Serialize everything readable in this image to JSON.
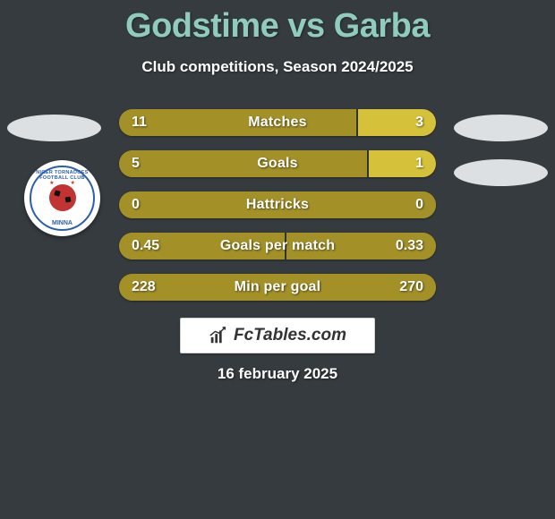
{
  "title": "Godstime vs Garba",
  "subtitle": "Club competitions, Season 2024/2025",
  "date": "16 february 2025",
  "brand": "FcTables.com",
  "colors": {
    "background": "#353B3E",
    "title": "#8FCCBF",
    "text": "#ffffff",
    "bar_left": "#A39128",
    "bar_right_hi": "#D6C23A",
    "oval": "#DCE0E2",
    "shadow": "rgba(0,0,0,0.4)"
  },
  "badge": {
    "top_text": "NIGER TORNADOES FOOTBALL CLUB",
    "bottom_text": "MINNA",
    "ring_color": "#2B5FAE",
    "ball_color": "#C23434"
  },
  "rows": [
    {
      "label": "Matches",
      "left": "11",
      "right": "3",
      "left_pct": 75.1,
      "right_color": "#D6C23A"
    },
    {
      "label": "Goals",
      "left": "5",
      "right": "1",
      "left_pct": 78.5,
      "right_color": "#D6C23A"
    },
    {
      "label": "Hattricks",
      "left": "0",
      "right": "0",
      "left_pct": 100,
      "right_color": "#A39128"
    },
    {
      "label": "Goals per match",
      "left": "0.45",
      "right": "0.33",
      "left_pct": 52.5,
      "right_color": "#A39128"
    },
    {
      "label": "Min per goal",
      "left": "228",
      "right": "270",
      "left_pct": 100,
      "right_color": "#A39128"
    }
  ]
}
